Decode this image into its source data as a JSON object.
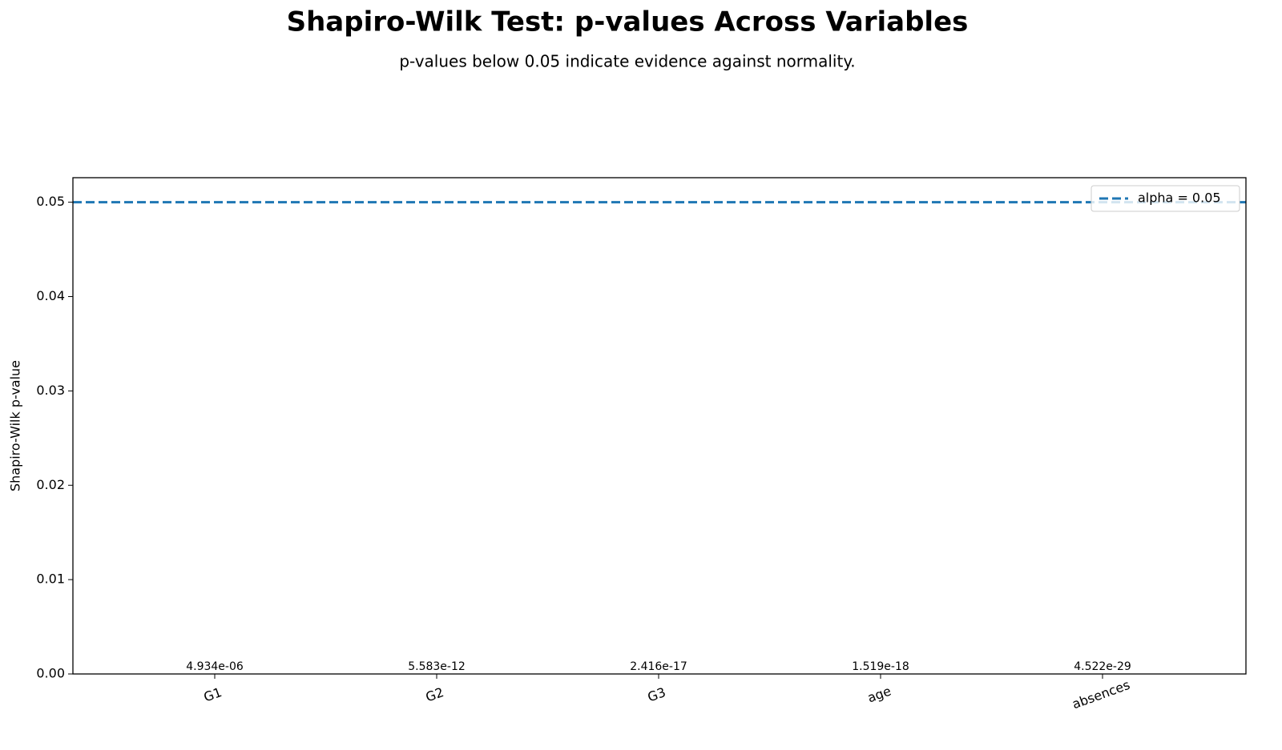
{
  "chart_data": {
    "type": "bar",
    "title": "Shapiro-Wilk Test: p-values Across Variables",
    "subtitle": "p-values below 0.05 indicate evidence against normality.",
    "y_label": "Shapiro-Wilk p-value",
    "categories": [
      "G1",
      "G2",
      "G3",
      "age",
      "absences"
    ],
    "values": [
      4.934e-06,
      5.583e-12,
      2.416e-17,
      1.519e-18,
      4.522e-29
    ],
    "value_labels": [
      "4.934e-06",
      "5.583e-12",
      "2.416e-17",
      "1.519e-18",
      "4.522e-29"
    ],
    "color": "#1f77b4",
    "ylim": [
      0,
      0.0526
    ],
    "yticks": [
      {
        "value": 0,
        "label": "0.00"
      },
      0.01,
      0.02,
      0.03,
      0.04,
      0.05
    ],
    "reference_line": {
      "value": 0.05,
      "label": "alpha = 0.05",
      "color": "#1f77b4",
      "style": "dashed"
    },
    "legend": "upper right"
  }
}
